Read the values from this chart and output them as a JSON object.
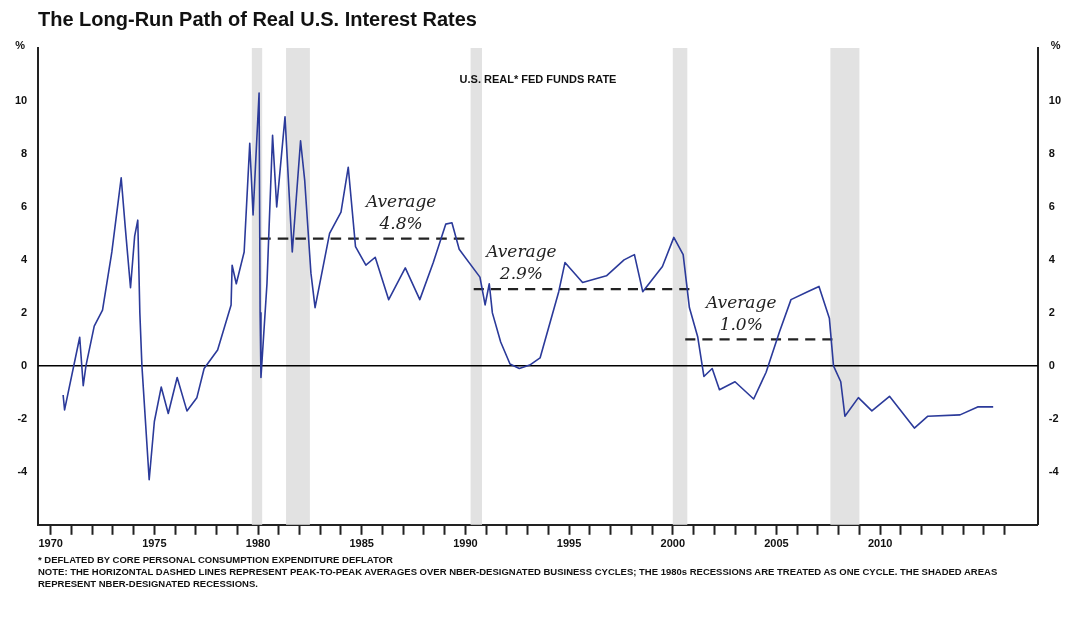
{
  "chart_data": {
    "type": "line",
    "title": "The Long-Run Path of Real U.S. Interest Rates",
    "subtitle": "U.S. REAL* FED FUNDS RATE",
    "ylabel": "%",
    "y2label": "%",
    "xlim": [
      1969.4,
      2017.6
    ],
    "xticks": [
      1970,
      {
        "value": 1971,
        "label": null
      },
      {
        "value": 1972,
        "label": null
      },
      {
        "value": 1973,
        "label": null
      },
      {
        "value": 1974,
        "label": null
      },
      1975,
      {
        "value": 1976,
        "label": null
      },
      {
        "value": 1977,
        "label": null
      },
      {
        "value": 1978,
        "label": null
      },
      {
        "value": 1979,
        "label": null
      },
      1980,
      {
        "value": 1981,
        "label": null
      },
      {
        "value": 1982,
        "label": null
      },
      {
        "value": 1983,
        "label": null
      },
      {
        "value": 1984,
        "label": null
      },
      1985,
      {
        "value": 1986,
        "label": null
      },
      {
        "value": 1987,
        "label": null
      },
      {
        "value": 1988,
        "label": null
      },
      {
        "value": 1989,
        "label": null
      },
      1990,
      {
        "value": 1991,
        "label": null
      },
      {
        "value": 1992,
        "label": null
      },
      {
        "value": 1993,
        "label": null
      },
      {
        "value": 1994,
        "label": null
      },
      1995,
      {
        "value": 1996,
        "label": null
      },
      {
        "value": 1997,
        "label": null
      },
      {
        "value": 1998,
        "label": null
      },
      {
        "value": 1999,
        "label": null
      },
      2000,
      {
        "value": 2001,
        "label": null
      },
      {
        "value": 2002,
        "label": null
      },
      {
        "value": 2003,
        "label": null
      },
      {
        "value": 2004,
        "label": null
      },
      2005,
      {
        "value": 2006,
        "label": null
      },
      {
        "value": 2007,
        "label": null
      },
      {
        "value": 2008,
        "label": null
      },
      {
        "value": 2009,
        "label": null
      },
      2010,
      {
        "value": 2011,
        "label": null
      },
      {
        "value": 2012,
        "label": null
      },
      {
        "value": 2013,
        "label": null
      },
      {
        "value": 2014,
        "label": null
      },
      {
        "value": 2015,
        "label": null
      },
      {
        "value": 2016,
        "label": null
      }
    ],
    "ylim": [
      -6,
      12
    ],
    "yticks": [
      -4,
      -2,
      0,
      2,
      4,
      6,
      8,
      10
    ],
    "y2lim": [
      -6,
      12
    ],
    "y2ticks": [
      -4,
      -2,
      0,
      2,
      4,
      6,
      8,
      10
    ],
    "grid": false,
    "legend": false,
    "marker": "none",
    "series": [
      {
        "color": "#2b3a9a",
        "line_style": "solid",
        "x": [
          1970.6,
          1970.67,
          1971.4,
          1971.57,
          1971.7,
          1972.1,
          1972.5,
          1972.95,
          1973.4,
          1973.6,
          1973.85,
          1974.05,
          1974.2,
          1974.3,
          1974.4,
          1974.75,
          1975.0,
          1975.33,
          1975.67,
          1976.1,
          1976.57,
          1977.05,
          1977.4,
          1978.05,
          1978.7,
          1978.75,
          1978.95,
          1979.33,
          1979.6,
          1979.76,
          1980.05,
          1980.1,
          1980.14,
          1980.43,
          1980.7,
          1980.9,
          1981.3,
          1981.65,
          1982.05,
          1982.25,
          1982.55,
          1982.75,
          1983.45,
          1984.0,
          1984.35,
          1984.7,
          1985.2,
          1985.65,
          1986.3,
          1987.1,
          1987.8,
          1988.45,
          1989.05,
          1989.35,
          1989.7,
          1990.7,
          1990.95,
          1991.15,
          1991.3,
          1991.7,
          1992.15,
          1992.6,
          1993.1,
          1993.6,
          1994.5,
          1994.8,
          1995.65,
          1996.8,
          1997.65,
          1998.15,
          1998.55,
          1999.5,
          2000.05,
          2000.5,
          2000.8,
          2001.2,
          2001.5,
          2001.9,
          2002.25,
          2003.0,
          2003.9,
          2004.5,
          2005.15,
          2005.7,
          2006.5,
          2007.05,
          2007.55,
          2007.75,
          2008.1,
          2008.3,
          2008.95,
          2009.6,
          2010.45,
          2011.65,
          2012.3,
          2013.85,
          2014.7,
          2015.45
        ],
        "values": [
          -1.1,
          -1.66,
          1.08,
          -0.75,
          0,
          1.5,
          2.1,
          4.3,
          7.1,
          5.2,
          2.95,
          4.9,
          5.5,
          2.0,
          0,
          -4.3,
          -2.1,
          -0.8,
          -1.8,
          -0.44,
          -1.7,
          -1.2,
          -0.1,
          0.6,
          2.3,
          3.8,
          3.1,
          4.3,
          8.4,
          5.7,
          10.3,
          2.0,
          -0.44,
          3.1,
          8.7,
          6.0,
          9.4,
          4.3,
          8.5,
          7.0,
          3.5,
          2.2,
          5.0,
          5.8,
          7.5,
          4.5,
          3.8,
          4.1,
          2.5,
          3.7,
          2.5,
          3.9,
          5.35,
          5.4,
          4.4,
          3.35,
          2.3,
          3.1,
          2.0,
          0.9,
          0.07,
          -0.1,
          0.03,
          0.3,
          2.8,
          3.9,
          3.15,
          3.4,
          4.0,
          4.2,
          2.8,
          3.75,
          4.85,
          4.2,
          2.2,
          1.1,
          -0.4,
          -0.1,
          -0.9,
          -0.6,
          -1.25,
          -0.24,
          1.3,
          2.5,
          2.8,
          3.0,
          1.8,
          0,
          -0.6,
          -1.9,
          -1.2,
          -1.7,
          -1.15,
          -2.35,
          -1.9,
          -1.85,
          -1.55,
          -1.55
        ]
      },
      {
        "color": "#222222",
        "line_style": "dashed",
        "x": [
          1980.1,
          1989.95
        ],
        "values": [
          4.8,
          4.8
        ]
      },
      {
        "color": "#222222",
        "line_style": "dashed",
        "x": [
          1990.4,
          2000.8
        ],
        "values": [
          2.9,
          2.9
        ]
      },
      {
        "color": "#222222",
        "line_style": "dashed",
        "x": [
          2000.6,
          2007.7
        ],
        "values": [
          1.0,
          1.0
        ]
      }
    ],
    "ref_lines": [
      {
        "axis": "y",
        "value": 0,
        "color": "#000000"
      }
    ],
    "bands": [
      {
        "axis": "x",
        "from": 1979.7,
        "to": 1980.2,
        "color": "#e2e2e2"
      },
      {
        "axis": "x",
        "from": 1981.35,
        "to": 1982.5,
        "color": "#e2e2e2"
      },
      {
        "axis": "x",
        "from": 1990.25,
        "to": 1990.8,
        "color": "#e2e2e2"
      },
      {
        "axis": "x",
        "from": 2000.0,
        "to": 2000.7,
        "color": "#e2e2e2"
      },
      {
        "axis": "x",
        "from": 2007.6,
        "to": 2009.0,
        "color": "#e2e2e2"
      }
    ],
    "annotations": [
      {
        "text": "Average\n4.8%",
        "x": 1986.9,
        "y": 4.8
      },
      {
        "text": "Average\n2.9%",
        "x": 1992.7,
        "y": 2.9
      },
      {
        "text": "Average\n1.0%",
        "x": 2003.3,
        "y": 1.0
      },
      "* DEFLATED BY CORE PERSONAL CONSUMPTION EXPENDITURE DEFLATOR",
      "NOTE: THE HORIZONTAL DASHED LINES REPRESENT PEAK-TO-PEAK AVERAGES OVER NBER-DESIGNATED BUSINESS CYCLES; THE 1980s RECESSIONS ARE TREATED AS ONE CYCLE. THE SHADED AREAS REPRESENT NBER-DESIGNATED RECESSIONS."
    ]
  }
}
